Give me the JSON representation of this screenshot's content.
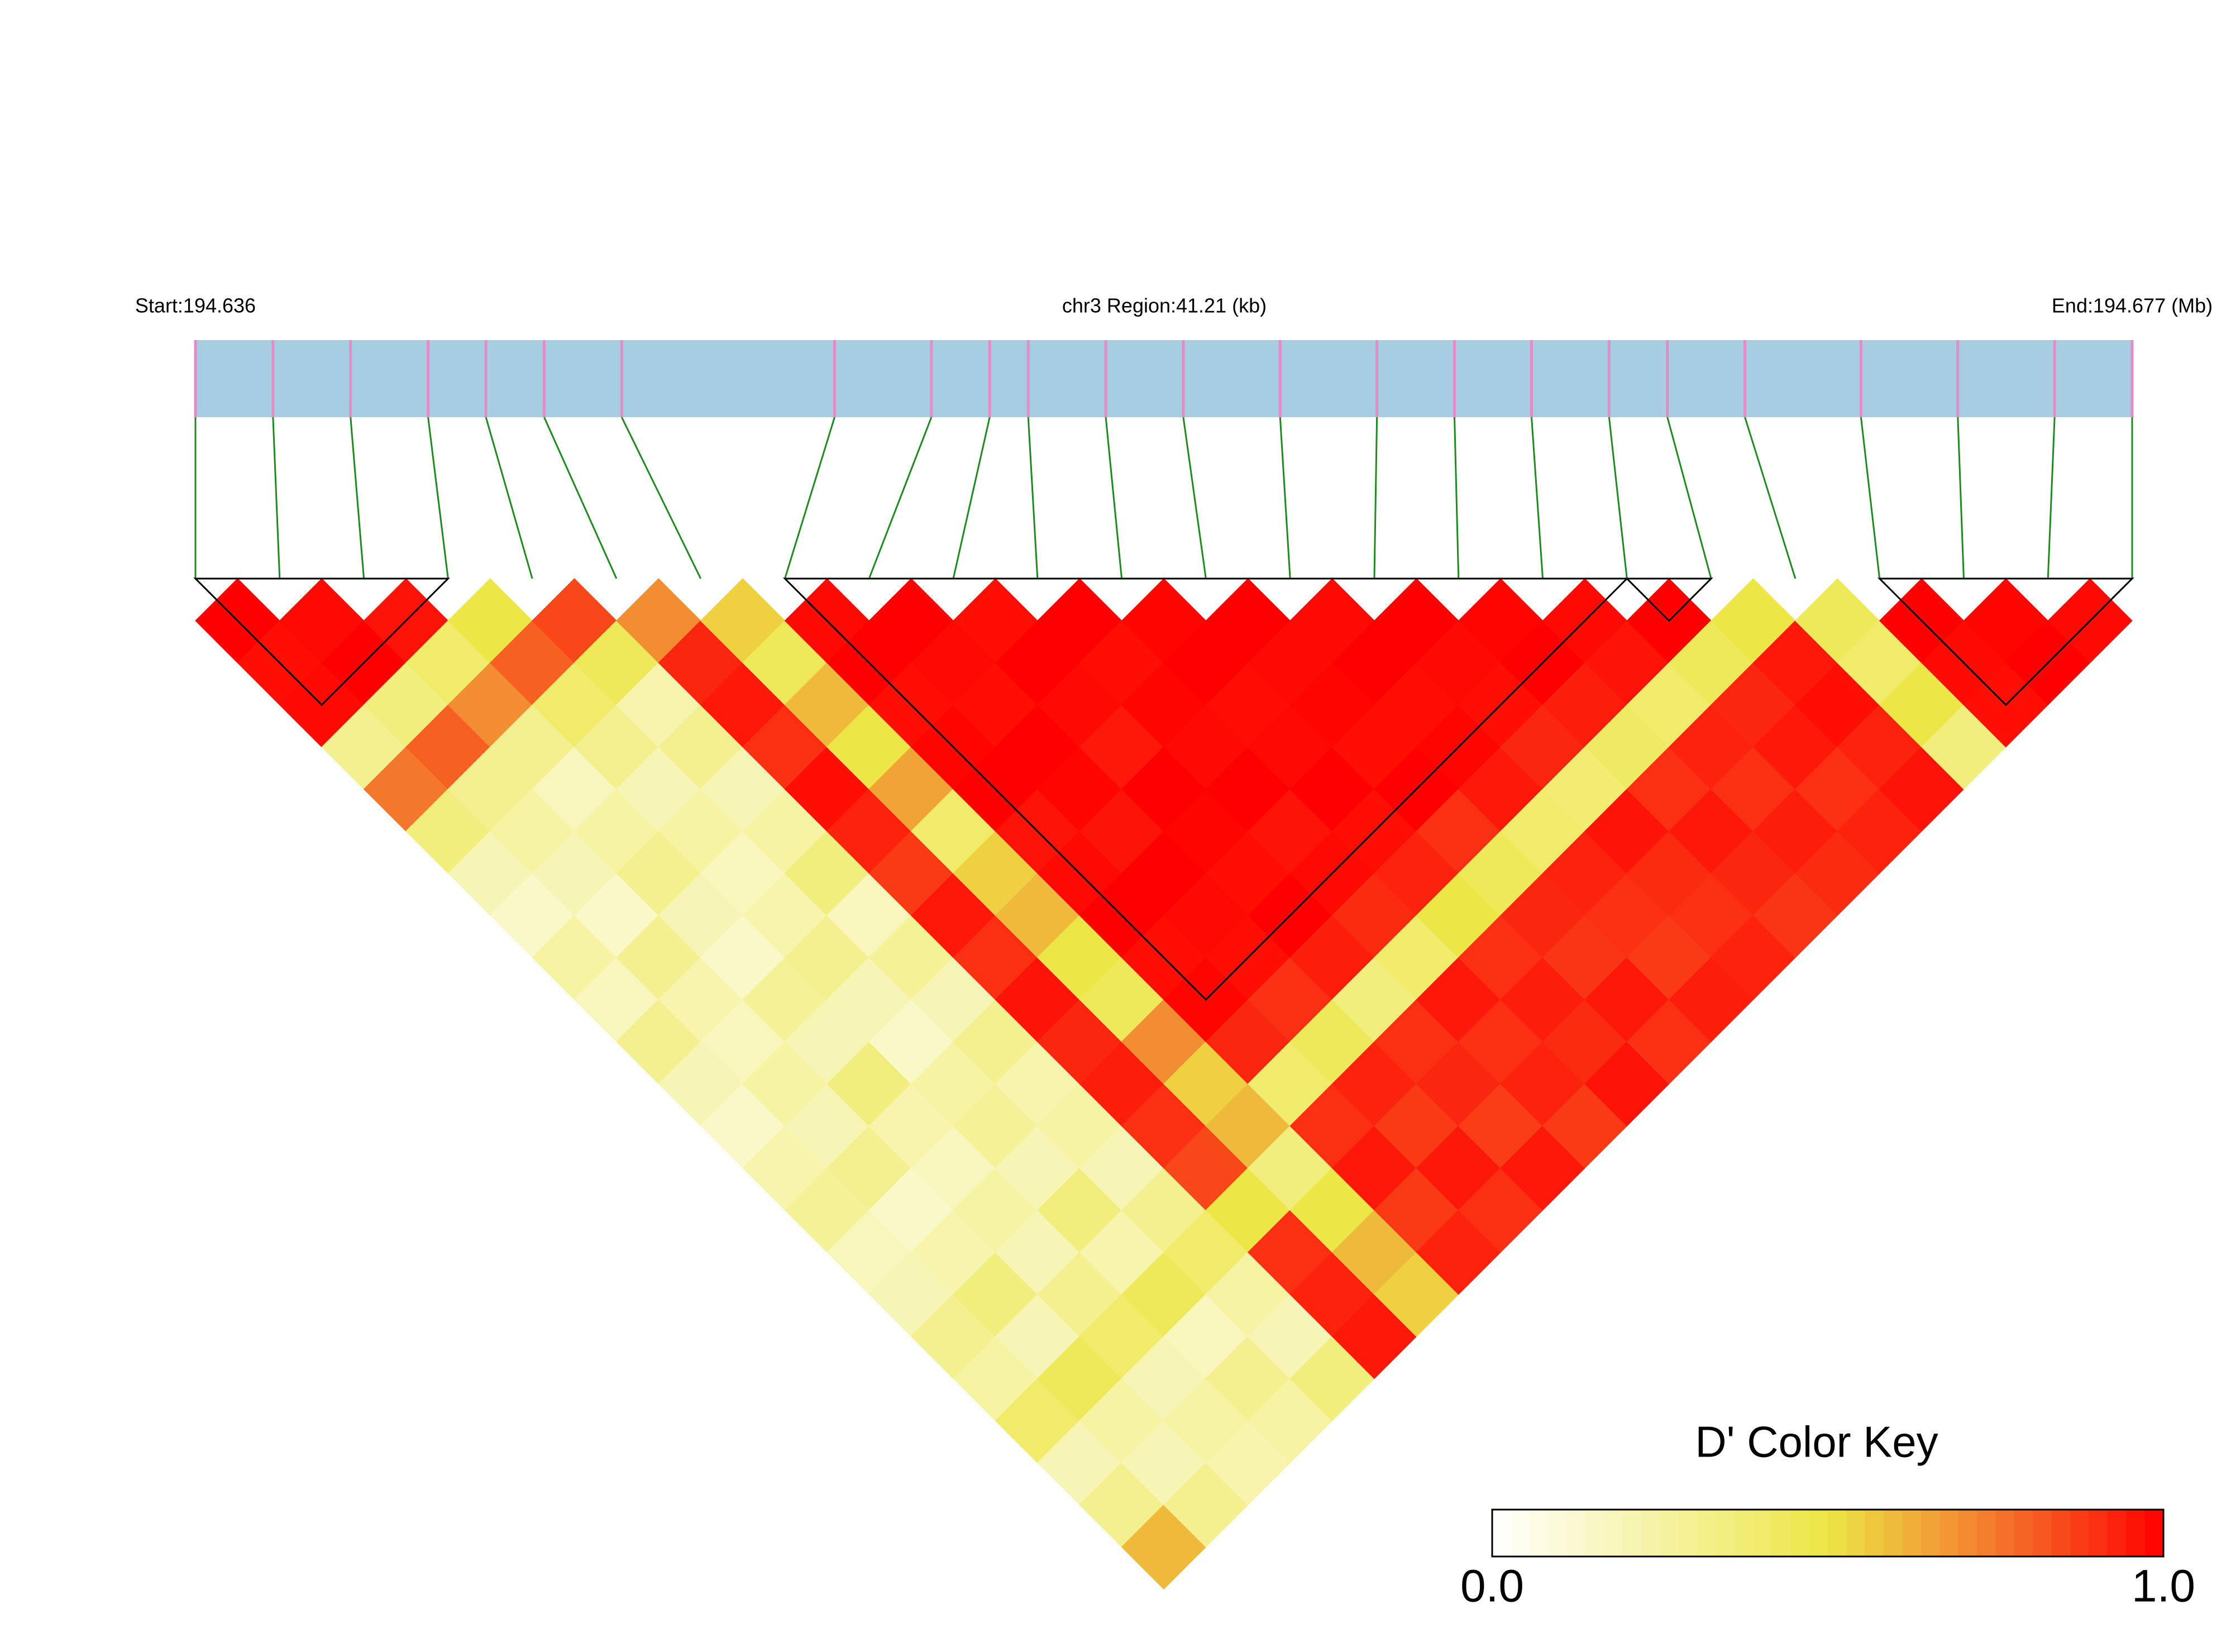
{
  "chart_data": {
    "type": "ld_heatmap",
    "start_label": "Start:194.636",
    "region_label": "chr3 Region:41.21 (kb)",
    "end_label": "End:194.677 (Mb)",
    "key_title": "D' Color Key",
    "xlim": [
      0,
      41.21
    ],
    "positions": [
      0.0,
      1.65,
      3.3,
      4.95,
      6.18,
      7.42,
      9.07,
      13.6,
      15.66,
      16.9,
      17.72,
      19.37,
      21.02,
      23.08,
      25.14,
      26.79,
      28.43,
      30.08,
      31.32,
      32.97,
      35.44,
      37.5,
      39.56,
      41.21
    ],
    "matrix": [
      [
        1,
        0.97,
        0.98,
        0.3,
        0.75,
        0.35,
        0.2,
        0.15,
        0.25,
        0.18,
        0.3,
        0.2,
        0.15,
        0.22,
        0.28,
        0.18,
        0.2,
        0.3,
        0.25,
        0.4,
        0.2,
        0.3,
        0.6
      ],
      [
        0.98,
        1,
        0.35,
        0.8,
        0.3,
        0.25,
        0.2,
        0.15,
        0.3,
        0.22,
        0.18,
        0.25,
        0.2,
        0.3,
        0.15,
        0.22,
        0.35,
        0.2,
        0.45,
        0.25,
        0.2,
        0.3
      ],
      [
        0.96,
        0.4,
        0.7,
        0.3,
        0.18,
        0.25,
        0.3,
        0.2,
        0.15,
        0.28,
        0.2,
        0.35,
        0.22,
        0.18,
        0.25,
        0.2,
        0.3,
        0.4,
        0.2,
        0.25,
        0.22
      ],
      [
        0.5,
        0.8,
        0.4,
        0.3,
        0.2,
        0.25,
        0.18,
        0.22,
        0.3,
        0.2,
        0.15,
        0.25,
        0.28,
        0.2,
        0.35,
        0.22,
        0.45,
        0.18,
        0.3,
        0.25
      ],
      [
        0.85,
        0.45,
        0.22,
        0.3,
        0.2,
        0.25,
        0.35,
        0.18,
        0.28,
        0.2,
        0.3,
        0.22,
        0.25,
        0.2,
        0.3,
        0.4,
        0.25,
        0.2,
        0.35
      ],
      [
        0.7,
        0.92,
        0.95,
        0.9,
        0.97,
        0.93,
        0.88,
        0.95,
        0.9,
        0.96,
        0.92,
        0.94,
        0.9,
        0.85,
        0.5,
        0.9,
        0.93,
        0.95
      ],
      [
        0.55,
        0.45,
        0.6,
        0.5,
        0.65,
        0.4,
        0.55,
        0.6,
        0.5,
        0.45,
        0.7,
        0.55,
        0.6,
        0.35,
        0.5,
        0.6,
        0.55
      ],
      [
        0.98,
        1,
        0.97,
        0.99,
        1,
        0.96,
        0.98,
        1,
        0.97,
        0.99,
        0.92,
        0.4,
        0.9,
        0.95,
        0.88,
        0.93
      ],
      [
        1,
        0.98,
        0.97,
        1,
        0.99,
        0.96,
        1,
        0.98,
        0.97,
        0.9,
        0.45,
        0.93,
        0.88,
        0.95,
        0.9
      ],
      [
        0.97,
        1,
        0.98,
        0.95,
        1,
        0.99,
        0.97,
        1,
        0.94,
        0.35,
        0.9,
        0.92,
        0.87,
        0.95
      ],
      [
        1,
        0.97,
        0.99,
        0.98,
        1,
        0.96,
        0.98,
        0.91,
        0.4,
        0.95,
        0.9,
        0.93,
        0.88
      ],
      [
        0.99,
        1,
        0.97,
        0.98,
        1,
        0.97,
        0.93,
        0.5,
        0.9,
        0.94,
        0.91,
        0.96
      ],
      [
        1,
        0.98,
        0.99,
        0.97,
        1,
        0.9,
        0.45,
        0.92,
        0.89,
        0.95,
        0.9
      ],
      [
        0.98,
        1,
        0.97,
        0.99,
        0.95,
        0.4,
        0.93,
        0.9,
        0.88,
        0.94
      ],
      [
        1,
        0.98,
        0.97,
        0.92,
        0.38,
        0.96,
        0.91,
        0.9,
        0.93
      ],
      [
        0.99,
        1,
        0.94,
        0.42,
        0.9,
        0.95,
        0.92,
        0.89
      ],
      [
        0.98,
        0.96,
        0.4,
        0.93,
        0.9,
        0.94,
        0.91
      ],
      [
        1,
        0.45,
        0.92,
        0.95,
        0.9,
        0.93
      ],
      [
        0.5,
        0.95,
        0.97,
        0.93,
        0.96
      ],
      [
        0.45,
        0.4,
        0.5,
        0.35
      ],
      [
        1,
        0.98,
        0.97
      ],
      [
        0.99,
        1
      ],
      [
        0.98
      ]
    ],
    "blocks": [
      [
        0,
        3
      ],
      [
        7,
        17
      ],
      [
        17,
        18
      ],
      [
        20,
        23
      ]
    ],
    "klim": [
      0,
      1
    ],
    "key_ticks": [
      {
        "value": 0,
        "label": "0.0"
      },
      {
        "value": 1,
        "label": "1.0"
      }
    ],
    "color_stops": [
      {
        "value": 0,
        "color": "#ffffff"
      },
      {
        "value": 0.5,
        "color": "#ece646"
      },
      {
        "value": 0.75,
        "color": "#f4782c"
      },
      {
        "value": 1,
        "color": "#ff0000"
      }
    ],
    "bar_color": "#a6cde2",
    "snp_color": "#e58cc8",
    "connector_color": "#1f8a1f"
  }
}
